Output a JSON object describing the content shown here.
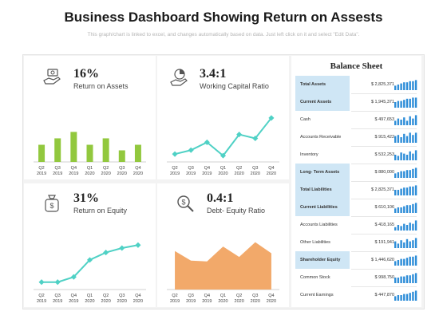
{
  "header": {
    "title": "Business Dashboard Showing Return on Assests",
    "subtitle": "This graph/chart is linked to excel, and changes automatically based on data. Just left click on it and select \"Edit Data\"."
  },
  "metrics": {
    "roa": {
      "value": "16%",
      "label": "Return on Assets",
      "icon": "hand-money-icon"
    },
    "wcr": {
      "value": "3.4:1",
      "label": "Working Capital Ratio",
      "icon": "hand-pie-chart-icon"
    },
    "roe": {
      "value": "31%",
      "label": "Return on Equity",
      "icon": "money-bag-icon"
    },
    "der": {
      "value": "0.4:1",
      "label": "Debt- Equity Ratio",
      "icon": "magnifier-dollar-icon"
    }
  },
  "colors": {
    "green": "#92c83e",
    "teal": "#4fd1c5",
    "orange": "#f2a96a",
    "blue": "#2f8ed8",
    "highlight": "#cfe6f5"
  },
  "balance_sheet": {
    "title": "Balance Sheet",
    "rows": [
      {
        "label": "Total Assets",
        "amount": "$ 2,825,371",
        "highlight": true
      },
      {
        "label": "Current Assets",
        "amount": "$ 1,945,371",
        "highlight": true
      },
      {
        "label": "Cash",
        "amount": "$ 497,653",
        "highlight": false
      },
      {
        "label": "Accounts Receivable",
        "amount": "$ 915,422",
        "highlight": false
      },
      {
        "label": "Inventory",
        "amount": "$ 532,253",
        "highlight": false
      },
      {
        "label": "Long- Term Assets",
        "amount": "$ 880,000",
        "highlight": true
      },
      {
        "label": "Total Liabilities",
        "amount": "$ 2,825,371",
        "highlight": true
      },
      {
        "label": "Current Liabilities",
        "amount": "$ 610,106",
        "highlight": true
      },
      {
        "label": "Accounts Liabilities",
        "amount": "$ 418,165",
        "highlight": false
      },
      {
        "label": "Other Liabilities",
        "amount": "$ 191,941",
        "highlight": false
      },
      {
        "label": "Shareholder Equity",
        "amount": "$ 1,446,620",
        "highlight": true
      },
      {
        "label": "Common Stock",
        "amount": "$ 998,750",
        "highlight": false
      },
      {
        "label": "Current Earnings",
        "amount": "$ 447,870",
        "highlight": false
      }
    ]
  },
  "chart_data": [
    {
      "type": "bar",
      "title": "Return on Assets",
      "categories": [
        "Q2 2019",
        "Q3 2019",
        "Q4 2019",
        "Q1 2020",
        "Q2 2020",
        "Q3 2020",
        "Q4 2020"
      ],
      "values": [
        4,
        5.5,
        7,
        4,
        5.5,
        2.7,
        4
      ],
      "ylim": [
        0,
        8
      ],
      "color": "#92c83e"
    },
    {
      "type": "line",
      "title": "Working Capital Ratio",
      "categories": [
        "Q2 2019",
        "Q3 2019",
        "Q4 2019",
        "Q1 2020",
        "Q2 2020",
        "Q3 2020",
        "Q4 2020"
      ],
      "values": [
        1,
        1.5,
        2.5,
        0.8,
        3.5,
        3,
        5.6
      ],
      "ylim": [
        0,
        6
      ],
      "color": "#4fd1c5"
    },
    {
      "type": "line",
      "title": "Return on Equity",
      "categories": [
        "Q2 2019",
        "Q3 2019",
        "Q4 2019",
        "Q1 2020",
        "Q2 2020",
        "Q3 2020",
        "Q4 2020"
      ],
      "values": [
        1,
        1,
        1.7,
        4,
        5,
        5.6,
        6
      ],
      "ylim": [
        0,
        7
      ],
      "color": "#4fd1c5"
    },
    {
      "type": "area",
      "title": "Debt- Equity Ratio",
      "categories": [
        "Q2 2019",
        "Q3 2019",
        "Q4 2019",
        "Q1 2020",
        "Q2 2020",
        "Q3 2020",
        "Q4 2020"
      ],
      "values": [
        5.2,
        3.9,
        3.8,
        5.8,
        4.4,
        6.4,
        4.9
      ],
      "ylim": [
        0,
        7
      ],
      "color": "#f2a96a"
    },
    {
      "type": "bar",
      "title": "Balance Sheet sparklines",
      "series": [
        {
          "values": [
            4,
            5,
            6,
            7,
            7,
            8,
            8,
            9
          ]
        },
        {
          "values": [
            5,
            6,
            6,
            7,
            8,
            8,
            9,
            9
          ]
        },
        {
          "values": [
            4,
            6,
            5,
            7,
            4,
            8,
            6,
            9
          ]
        },
        {
          "values": [
            6,
            7,
            5,
            8,
            6,
            9,
            7,
            9
          ]
        },
        {
          "values": [
            5,
            4,
            7,
            6,
            5,
            8,
            6,
            9
          ]
        },
        {
          "values": [
            4,
            5,
            6,
            6,
            7,
            7,
            8,
            9
          ]
        },
        {
          "values": [
            5,
            5,
            6,
            7,
            7,
            8,
            8,
            9
          ]
        },
        {
          "values": [
            4,
            5,
            5,
            6,
            7,
            7,
            8,
            9
          ]
        },
        {
          "values": [
            3,
            5,
            4,
            6,
            5,
            7,
            6,
            9
          ]
        },
        {
          "values": [
            6,
            4,
            7,
            5,
            8,
            6,
            7,
            9
          ]
        },
        {
          "values": [
            4,
            5,
            6,
            6,
            7,
            8,
            8,
            9
          ]
        },
        {
          "values": [
            5,
            5,
            6,
            6,
            7,
            7,
            8,
            9
          ]
        },
        {
          "values": [
            4,
            5,
            5,
            6,
            6,
            7,
            8,
            9
          ]
        }
      ],
      "ylim": [
        0,
        10
      ],
      "color": "#2f8ed8"
    }
  ]
}
